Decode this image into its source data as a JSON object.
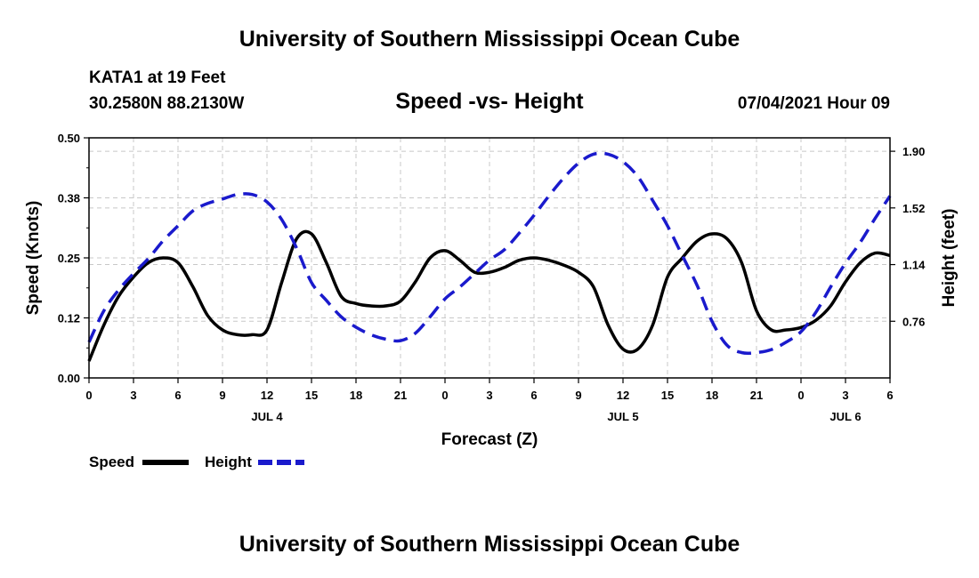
{
  "header": {
    "title": "University of Southern Mississippi Ocean Cube",
    "station": "KATA1 at 19 Feet",
    "coords": "30.2580N  88.2130W",
    "subtitle": "Speed -vs- Height",
    "datetime": "07/04/2021 Hour 09"
  },
  "footer": {
    "title": "University of Southern Mississippi Ocean Cube"
  },
  "colors": {
    "speed": "#000000",
    "height": "#1a1acc",
    "grid": "#c8c8c8"
  },
  "chart_data": {
    "type": "line",
    "title": "Speed -vs- Height",
    "xlabel": "Forecast (Z)",
    "ylabel": "Speed (Knots)",
    "ylabel_right": "Height (feet)",
    "xlim": [
      0,
      54
    ],
    "ylim": [
      0,
      0.5
    ],
    "ylim_right": [
      0.38,
      1.99
    ],
    "x_ticks": [
      0,
      3,
      6,
      9,
      12,
      15,
      18,
      21,
      24,
      27,
      30,
      33,
      36,
      39,
      42,
      45,
      48,
      51,
      54
    ],
    "x_tick_labels": [
      "0",
      "3",
      "6",
      "9",
      "12",
      "15",
      "18",
      "21",
      "0",
      "3",
      "6",
      "9",
      "12",
      "15",
      "18",
      "21",
      "0",
      "3",
      "6"
    ],
    "y_ticks": [
      0.0,
      0.125,
      0.25,
      0.375,
      0.5
    ],
    "y_tick_labels": [
      "0.00",
      "0.12",
      "0.25",
      "0.38",
      "0.50"
    ],
    "y_right_ticks": [
      0.76,
      1.14,
      1.52,
      1.9
    ],
    "y_right_tick_labels": [
      "0.76",
      "1.14",
      "1.52",
      "1.90"
    ],
    "date_labels": [
      {
        "x": 12,
        "label": "JUL 4"
      },
      {
        "x": 36,
        "label": "JUL 5"
      },
      {
        "x": 51,
        "label": "JUL 6"
      }
    ],
    "grid": true,
    "legend": "bottom-left",
    "series": [
      {
        "name": "Speed",
        "axis": "left",
        "style": "solid",
        "x": [
          0,
          1,
          2,
          3,
          4,
          5,
          6,
          7,
          8,
          9,
          10,
          11,
          12,
          13,
          14,
          15,
          16,
          17,
          18,
          19,
          20,
          21,
          22,
          23,
          24,
          25,
          26,
          27,
          28,
          29,
          30,
          31,
          32,
          33,
          34,
          35,
          36,
          37,
          38,
          39,
          40,
          41,
          42,
          43,
          44,
          45,
          46,
          47,
          48,
          49,
          50,
          51,
          52,
          53,
          54
        ],
        "values": [
          0.035,
          0.11,
          0.17,
          0.21,
          0.24,
          0.25,
          0.24,
          0.19,
          0.13,
          0.1,
          0.09,
          0.09,
          0.1,
          0.2,
          0.29,
          0.3,
          0.24,
          0.17,
          0.155,
          0.15,
          0.15,
          0.16,
          0.2,
          0.25,
          0.265,
          0.245,
          0.22,
          0.22,
          0.23,
          0.245,
          0.25,
          0.245,
          0.235,
          0.22,
          0.19,
          0.11,
          0.06,
          0.06,
          0.11,
          0.21,
          0.25,
          0.285,
          0.3,
          0.29,
          0.24,
          0.14,
          0.1,
          0.1,
          0.105,
          0.12,
          0.15,
          0.2,
          0.24,
          0.26,
          0.255
        ]
      },
      {
        "name": "Height",
        "axis": "right",
        "style": "dashed",
        "x": [
          0,
          1,
          2,
          3,
          4,
          5,
          6,
          7,
          8,
          9,
          10,
          11,
          12,
          13,
          14,
          15,
          16,
          17,
          18,
          19,
          20,
          21,
          22,
          23,
          24,
          25,
          26,
          27,
          28,
          29,
          30,
          31,
          32,
          33,
          34,
          35,
          36,
          37,
          38,
          39,
          40,
          41,
          42,
          43,
          44,
          45,
          46,
          47,
          48,
          49,
          50,
          51,
          52,
          53,
          54
        ],
        "values": [
          0.62,
          0.83,
          0.97,
          1.08,
          1.18,
          1.3,
          1.4,
          1.5,
          1.55,
          1.58,
          1.61,
          1.61,
          1.56,
          1.44,
          1.25,
          1.02,
          0.9,
          0.79,
          0.72,
          0.67,
          0.64,
          0.63,
          0.68,
          0.79,
          0.91,
          0.99,
          1.08,
          1.17,
          1.24,
          1.35,
          1.47,
          1.6,
          1.72,
          1.82,
          1.88,
          1.88,
          1.83,
          1.73,
          1.57,
          1.4,
          1.2,
          1.0,
          0.76,
          0.6,
          0.55,
          0.55,
          0.57,
          0.62,
          0.69,
          0.82,
          0.99,
          1.15,
          1.29,
          1.45,
          1.6
        ]
      }
    ]
  }
}
